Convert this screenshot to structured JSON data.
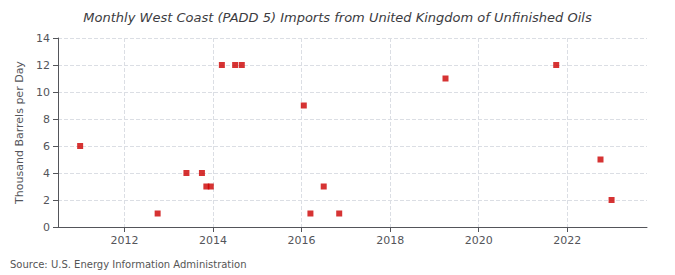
{
  "chart_data": {
    "type": "scatter",
    "title": "Monthly West Coast (PADD 5) Imports from United Kingdom of Unfinished Oils",
    "ylabel": "Thousand Barrels per Day",
    "annotations": [
      "Source: U.S. Energy Information Administration"
    ],
    "x": [
      2011.0,
      2012.75,
      2013.4,
      2013.75,
      2013.85,
      2013.95,
      2014.2,
      2014.5,
      2014.65,
      2016.05,
      2016.2,
      2016.5,
      2016.85,
      2019.25,
      2021.75,
      2022.75,
      2023.0
    ],
    "values": [
      6,
      1,
      4,
      4,
      3,
      3,
      12,
      12,
      12,
      9,
      1,
      3,
      1,
      11,
      12,
      5,
      2
    ],
    "color": "#cc0000",
    "marker": "square",
    "xlim": [
      2010.5,
      2023.8
    ],
    "ylim": [
      0,
      14
    ],
    "xticks": [
      2012,
      2014,
      2016,
      2018,
      2020,
      2022
    ],
    "yticks": [
      0,
      2,
      4,
      6,
      8,
      10,
      12,
      14
    ],
    "grid": true
  }
}
